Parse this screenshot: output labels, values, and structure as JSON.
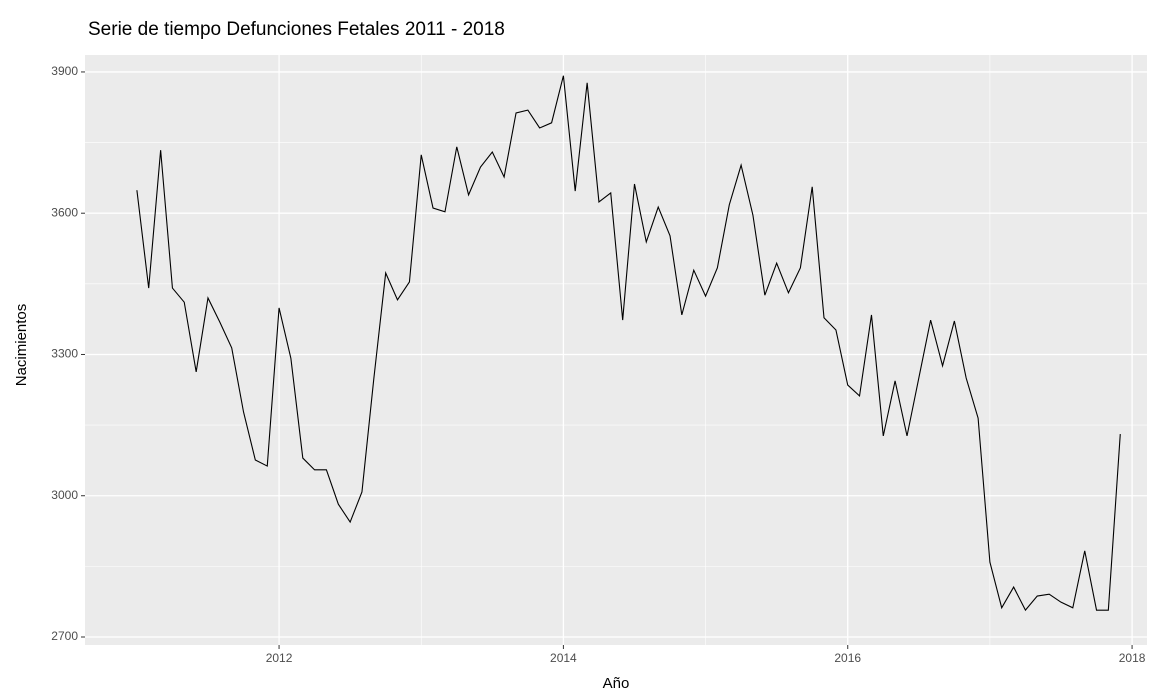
{
  "chart_data": {
    "type": "line",
    "title": "Serie de tiempo Defunciones Fetales 2011 - 2018",
    "x_label": "Año",
    "y_label": "Nacimientos",
    "x": [
      2011.0,
      2011.083,
      2011.167,
      2011.25,
      2011.333,
      2011.417,
      2011.5,
      2011.583,
      2011.667,
      2011.75,
      2011.833,
      2011.917,
      2012.0,
      2012.083,
      2012.167,
      2012.25,
      2012.333,
      2012.417,
      2012.5,
      2012.583,
      2012.667,
      2012.75,
      2012.833,
      2012.917,
      2013.0,
      2013.083,
      2013.167,
      2013.25,
      2013.333,
      2013.417,
      2013.5,
      2013.583,
      2013.667,
      2013.75,
      2013.833,
      2013.917,
      2014.0,
      2014.083,
      2014.167,
      2014.25,
      2014.333,
      2014.417,
      2014.5,
      2014.583,
      2014.667,
      2014.75,
      2014.833,
      2014.917,
      2015.0,
      2015.083,
      2015.167,
      2015.25,
      2015.333,
      2015.417,
      2015.5,
      2015.583,
      2015.667,
      2015.75,
      2015.833,
      2015.917,
      2016.0,
      2016.083,
      2016.167,
      2016.25,
      2016.333,
      2016.417,
      2016.5,
      2016.583,
      2016.667,
      2016.75,
      2016.833,
      2016.917,
      2017.0,
      2017.083,
      2017.167,
      2017.25,
      2017.333,
      2017.417,
      2017.5,
      2017.583,
      2017.667,
      2017.75,
      2017.833,
      2017.917
    ],
    "series": [
      {
        "name": "Nacimientos",
        "color": "#000000",
        "values": [
          3649,
          3441,
          3734,
          3441,
          3411,
          3263,
          3420,
          3369,
          3314,
          3178,
          3076,
          3063,
          3399,
          3292,
          3080,
          3055,
          3055,
          2982,
          2944,
          3008,
          3250,
          3473,
          3416,
          3454,
          3724,
          3611,
          3603,
          3741,
          3639,
          3698,
          3730,
          3677,
          3813,
          3819,
          3781,
          3792,
          3892,
          3647,
          3877,
          3624,
          3643,
          3373,
          3662,
          3539,
          3613,
          3552,
          3384,
          3479,
          3424,
          3484,
          3618,
          3702,
          3596,
          3426,
          3494,
          3431,
          3484,
          3656,
          3378,
          3352,
          3235,
          3212,
          3384,
          3127,
          3244,
          3127,
          3250,
          3373,
          3276,
          3371,
          3250,
          3165,
          2859,
          2762,
          2806,
          2757,
          2787,
          2791,
          2774,
          2762,
          2883,
          2757,
          2757,
          3131
        ]
      }
    ],
    "xlim": [
      2010.635,
      2018.105
    ],
    "xticks": [
      2012,
      2014,
      2016,
      2018
    ],
    "ylim": [
      2683,
      3936
    ],
    "yticks": [
      2700,
      3000,
      3300,
      3600,
      3900
    ],
    "grid": true
  }
}
